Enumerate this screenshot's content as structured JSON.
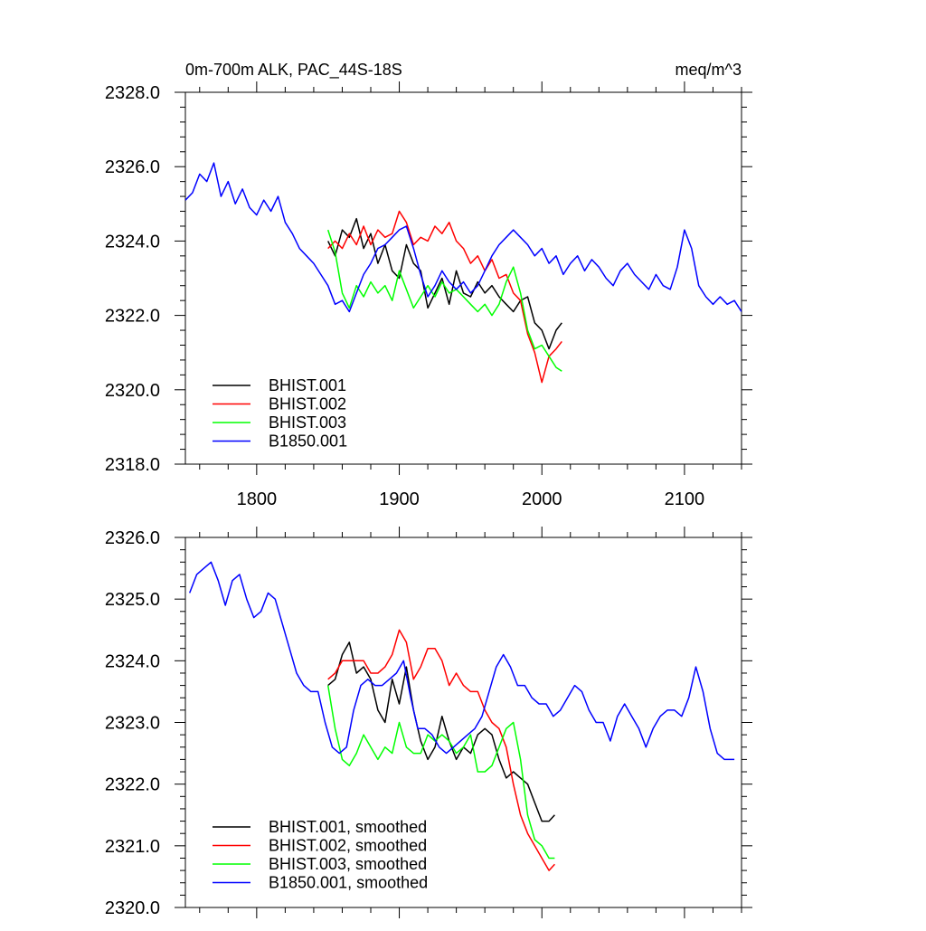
{
  "header": {
    "title": "0m-700m ALK, PAC_44S-18S",
    "units": "meq/m^3"
  },
  "chart_data": [
    {
      "type": "line",
      "title": "0m-700m ALK, PAC_44S-18S",
      "units": "meq/m^3",
      "xlim": [
        1750,
        2140
      ],
      "ylim": [
        2318,
        2328
      ],
      "x_ticks": [
        1800,
        1900,
        2000,
        2100
      ],
      "y_ticks": [
        2318.0,
        2320.0,
        2322.0,
        2324.0,
        2326.0,
        2328.0
      ],
      "grid": false,
      "legend_position": "bottom-left",
      "series": [
        {
          "name": "BHIST.001",
          "color": "#000000",
          "x": [
            1850,
            1855,
            1860,
            1865,
            1870,
            1875,
            1880,
            1885,
            1890,
            1895,
            1900,
            1905,
            1910,
            1915,
            1920,
            1925,
            1930,
            1935,
            1940,
            1945,
            1950,
            1955,
            1960,
            1965,
            1970,
            1975,
            1980,
            1985,
            1990,
            1995,
            2000,
            2005,
            2010,
            2014
          ],
          "y": [
            2324.0,
            2323.6,
            2324.3,
            2324.1,
            2324.6,
            2323.8,
            2324.2,
            2323.4,
            2323.9,
            2323.2,
            2323.0,
            2323.9,
            2323.4,
            2323.2,
            2322.2,
            2322.6,
            2323.0,
            2322.3,
            2323.2,
            2322.6,
            2322.5,
            2322.9,
            2322.6,
            2322.8,
            2322.5,
            2322.3,
            2322.1,
            2322.4,
            2322.5,
            2321.8,
            2321.6,
            2321.1,
            2321.6,
            2321.8
          ]
        },
        {
          "name": "BHIST.002",
          "color": "#ff0000",
          "x": [
            1850,
            1855,
            1860,
            1865,
            1870,
            1875,
            1880,
            1885,
            1890,
            1895,
            1900,
            1905,
            1910,
            1915,
            1920,
            1925,
            1930,
            1935,
            1940,
            1945,
            1950,
            1955,
            1960,
            1965,
            1970,
            1975,
            1980,
            1985,
            1990,
            1995,
            2000,
            2005,
            2010,
            2014
          ],
          "y": [
            2323.8,
            2324.0,
            2323.8,
            2324.2,
            2323.9,
            2324.4,
            2323.9,
            2324.3,
            2324.1,
            2324.2,
            2324.8,
            2324.5,
            2323.9,
            2324.1,
            2324.0,
            2324.4,
            2324.2,
            2324.5,
            2324.0,
            2323.8,
            2323.4,
            2323.6,
            2323.2,
            2323.5,
            2323.0,
            2323.1,
            2322.6,
            2322.4,
            2321.5,
            2321.0,
            2320.2,
            2320.9,
            2321.1,
            2321.3
          ]
        },
        {
          "name": "BHIST.003",
          "color": "#00ff00",
          "x": [
            1850,
            1855,
            1860,
            1865,
            1870,
            1875,
            1880,
            1885,
            1890,
            1895,
            1900,
            1905,
            1910,
            1915,
            1920,
            1925,
            1930,
            1935,
            1940,
            1945,
            1950,
            1955,
            1960,
            1965,
            1970,
            1975,
            1980,
            1985,
            1990,
            1995,
            2000,
            2005,
            2010,
            2014
          ],
          "y": [
            2324.3,
            2323.7,
            2322.6,
            2322.2,
            2322.8,
            2322.5,
            2322.9,
            2322.6,
            2322.8,
            2322.4,
            2323.2,
            2322.7,
            2322.2,
            2322.5,
            2322.8,
            2322.5,
            2322.9,
            2322.6,
            2322.7,
            2322.5,
            2322.3,
            2322.1,
            2322.3,
            2322.0,
            2322.3,
            2322.9,
            2323.3,
            2322.6,
            2321.6,
            2321.1,
            2321.2,
            2320.9,
            2320.6,
            2320.5
          ]
        },
        {
          "name": "B1850.001",
          "color": "#0000ff",
          "x": [
            1750,
            1755,
            1760,
            1765,
            1770,
            1775,
            1780,
            1785,
            1790,
            1795,
            1800,
            1805,
            1810,
            1815,
            1820,
            1825,
            1830,
            1835,
            1840,
            1845,
            1850,
            1855,
            1860,
            1865,
            1870,
            1875,
            1880,
            1885,
            1890,
            1895,
            1900,
            1905,
            1910,
            1915,
            1920,
            1925,
            1930,
            1935,
            1940,
            1945,
            1950,
            1955,
            1960,
            1965,
            1970,
            1975,
            1980,
            1985,
            1990,
            1995,
            2000,
            2005,
            2010,
            2015,
            2020,
            2025,
            2030,
            2035,
            2040,
            2045,
            2050,
            2055,
            2060,
            2065,
            2070,
            2075,
            2080,
            2085,
            2090,
            2095,
            2100,
            2105,
            2110,
            2115,
            2120,
            2125,
            2130,
            2135,
            2140
          ],
          "y": [
            2325.1,
            2325.3,
            2325.8,
            2325.6,
            2326.1,
            2325.2,
            2325.6,
            2325.0,
            2325.4,
            2324.9,
            2324.7,
            2325.1,
            2324.8,
            2325.2,
            2324.5,
            2324.2,
            2323.8,
            2323.6,
            2323.4,
            2323.1,
            2322.8,
            2322.3,
            2322.4,
            2322.1,
            2322.6,
            2323.1,
            2323.4,
            2323.8,
            2323.9,
            2324.1,
            2324.3,
            2324.4,
            2323.8,
            2323.1,
            2322.5,
            2322.8,
            2323.2,
            2322.9,
            2322.7,
            2322.9,
            2322.6,
            2322.8,
            2323.2,
            2323.6,
            2323.9,
            2324.1,
            2324.3,
            2324.1,
            2323.9,
            2323.6,
            2323.8,
            2323.4,
            2323.6,
            2323.1,
            2323.4,
            2323.6,
            2323.2,
            2323.5,
            2323.3,
            2323.0,
            2322.8,
            2323.2,
            2323.4,
            2323.1,
            2322.9,
            2322.7,
            2323.1,
            2322.8,
            2322.7,
            2323.3,
            2324.3,
            2323.8,
            2322.8,
            2322.5,
            2322.3,
            2322.5,
            2322.3,
            2322.4,
            2322.1
          ]
        }
      ]
    },
    {
      "type": "line",
      "title": "",
      "xlim": [
        1750,
        2140
      ],
      "ylim": [
        2320,
        2326
      ],
      "x_ticks": [
        1800,
        1900,
        2000,
        2100
      ],
      "show_x_tick_labels": false,
      "y_ticks": [
        2320.0,
        2321.0,
        2322.0,
        2323.0,
        2324.0,
        2325.0,
        2326.0
      ],
      "grid": false,
      "legend_position": "bottom-left",
      "series": [
        {
          "name": "BHIST.001, smoothed",
          "color": "#000000",
          "x": [
            1850,
            1855,
            1860,
            1865,
            1870,
            1875,
            1880,
            1885,
            1890,
            1895,
            1900,
            1905,
            1910,
            1915,
            1920,
            1925,
            1930,
            1935,
            1940,
            1945,
            1950,
            1955,
            1960,
            1965,
            1970,
            1975,
            1980,
            1985,
            1990,
            1995,
            2000,
            2005,
            2009
          ],
          "y": [
            2323.6,
            2323.7,
            2324.1,
            2324.3,
            2323.8,
            2323.9,
            2323.7,
            2323.2,
            2323.0,
            2323.7,
            2323.3,
            2323.9,
            2323.2,
            2322.7,
            2322.4,
            2322.6,
            2323.1,
            2322.7,
            2322.4,
            2322.6,
            2322.5,
            2322.8,
            2322.9,
            2322.8,
            2322.4,
            2322.1,
            2322.2,
            2322.1,
            2322.0,
            2321.7,
            2321.4,
            2321.4,
            2321.5
          ]
        },
        {
          "name": "BHIST.002, smoothed",
          "color": "#ff0000",
          "x": [
            1850,
            1855,
            1860,
            1865,
            1870,
            1875,
            1880,
            1885,
            1890,
            1895,
            1900,
            1905,
            1910,
            1915,
            1920,
            1925,
            1930,
            1935,
            1940,
            1945,
            1950,
            1955,
            1960,
            1965,
            1970,
            1975,
            1980,
            1985,
            1990,
            1995,
            2000,
            2005,
            2009
          ],
          "y": [
            2323.7,
            2323.8,
            2324.0,
            2324.0,
            2324.0,
            2324.0,
            2323.8,
            2323.8,
            2323.9,
            2324.1,
            2324.5,
            2324.3,
            2323.7,
            2323.9,
            2324.2,
            2324.2,
            2324.0,
            2323.6,
            2323.8,
            2323.6,
            2323.5,
            2323.5,
            2323.2,
            2323.0,
            2322.9,
            2322.6,
            2322.0,
            2321.5,
            2321.2,
            2321.0,
            2320.8,
            2320.6,
            2320.7
          ]
        },
        {
          "name": "BHIST.003, smoothed",
          "color": "#00ff00",
          "x": [
            1850,
            1855,
            1860,
            1865,
            1870,
            1875,
            1880,
            1885,
            1890,
            1895,
            1900,
            1905,
            1910,
            1915,
            1920,
            1925,
            1930,
            1935,
            1940,
            1945,
            1950,
            1955,
            1960,
            1965,
            1970,
            1975,
            1980,
            1985,
            1990,
            1995,
            2000,
            2005,
            2009
          ],
          "y": [
            2323.6,
            2322.9,
            2322.4,
            2322.3,
            2322.5,
            2322.8,
            2322.6,
            2322.4,
            2322.6,
            2322.5,
            2323.0,
            2322.6,
            2322.5,
            2322.5,
            2322.8,
            2322.7,
            2322.8,
            2322.7,
            2322.5,
            2322.6,
            2322.8,
            2322.2,
            2322.2,
            2322.3,
            2322.6,
            2322.9,
            2323.0,
            2322.4,
            2321.5,
            2321.1,
            2321.0,
            2320.8,
            2320.8
          ]
        },
        {
          "name": "B1850.001, smoothed",
          "color": "#0000ff",
          "x": [
            1753,
            1758,
            1763,
            1768,
            1773,
            1778,
            1783,
            1788,
            1793,
            1798,
            1803,
            1808,
            1813,
            1818,
            1823,
            1828,
            1833,
            1838,
            1843,
            1848,
            1853,
            1858,
            1863,
            1868,
            1873,
            1878,
            1883,
            1888,
            1893,
            1898,
            1903,
            1908,
            1913,
            1918,
            1923,
            1928,
            1933,
            1938,
            1943,
            1948,
            1953,
            1958,
            1963,
            1968,
            1973,
            1978,
            1983,
            1988,
            1993,
            1998,
            2003,
            2008,
            2013,
            2018,
            2023,
            2028,
            2033,
            2038,
            2043,
            2048,
            2053,
            2058,
            2063,
            2068,
            2073,
            2078,
            2083,
            2088,
            2093,
            2098,
            2103,
            2108,
            2113,
            2118,
            2123,
            2128,
            2133,
            2135
          ],
          "y": [
            2325.1,
            2325.4,
            2325.5,
            2325.6,
            2325.3,
            2324.9,
            2325.3,
            2325.4,
            2325.0,
            2324.7,
            2324.8,
            2325.1,
            2325.0,
            2324.6,
            2324.2,
            2323.8,
            2323.6,
            2323.5,
            2323.5,
            2323.0,
            2322.6,
            2322.5,
            2322.6,
            2323.2,
            2323.6,
            2323.7,
            2323.6,
            2323.6,
            2323.7,
            2323.8,
            2324.0,
            2323.4,
            2322.9,
            2322.9,
            2322.8,
            2322.6,
            2322.5,
            2322.6,
            2322.7,
            2322.8,
            2322.9,
            2323.1,
            2323.5,
            2323.9,
            2324.1,
            2323.9,
            2323.6,
            2323.6,
            2323.4,
            2323.3,
            2323.3,
            2323.1,
            2323.2,
            2323.4,
            2323.6,
            2323.5,
            2323.2,
            2323.0,
            2323.0,
            2322.7,
            2323.1,
            2323.3,
            2323.1,
            2322.9,
            2322.6,
            2322.9,
            2323.1,
            2323.2,
            2323.2,
            2323.1,
            2323.4,
            2323.9,
            2323.5,
            2322.9,
            2322.5,
            2322.4,
            2322.4,
            2322.4
          ]
        }
      ]
    }
  ]
}
